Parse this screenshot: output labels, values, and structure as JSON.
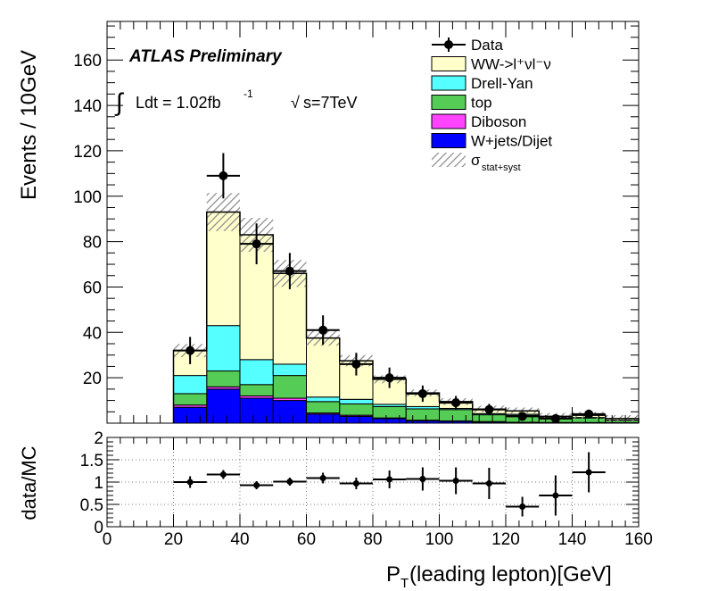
{
  "chart_data": [
    {
      "type": "bar",
      "stacked": true,
      "ylabel": "Events / 10GeV",
      "xlim": [
        0,
        160
      ],
      "ylim": [
        0,
        177
      ],
      "yticks": [
        20,
        40,
        60,
        80,
        100,
        120,
        140,
        160
      ],
      "bin_edges": [
        20,
        30,
        40,
        50,
        60,
        70,
        80,
        90,
        100,
        110,
        120,
        130,
        140,
        150,
        160
      ],
      "series": [
        {
          "name": "W+jets/Dijet",
          "color": "#0000ff",
          "values": [
            7,
            15,
            11,
            10,
            4,
            3,
            2,
            1,
            0.8,
            0.5,
            0.3,
            0.2,
            0.2,
            0.1
          ]
        },
        {
          "name": "Diboson",
          "color": "#ff44ff",
          "values": [
            1,
            1,
            1,
            1,
            0.5,
            0.5,
            0.3,
            0.3,
            0.2,
            0.2,
            0.1,
            0.1,
            0.1,
            0.1
          ]
        },
        {
          "name": "top",
          "color": "#55cc55",
          "values": [
            5,
            7,
            5,
            10,
            5,
            5,
            5,
            5,
            5,
            3,
            3,
            2,
            2,
            1
          ]
        },
        {
          "name": "Drell-Yan",
          "color": "#55ffff",
          "values": [
            8,
            20,
            11,
            5,
            2,
            2,
            1,
            1,
            0.5,
            0.5,
            0.5,
            0.2,
            0.2,
            0.1
          ]
        },
        {
          "name": "WW->l⁺νl⁻ν",
          "color": "#ffffcc",
          "values": [
            11,
            50,
            55,
            40,
            26,
            17,
            11,
            6,
            3,
            2,
            1.5,
            0.5,
            1,
            0.7
          ]
        }
      ],
      "data": {
        "name": "Data",
        "x": [
          25,
          35,
          45,
          55,
          65,
          75,
          85,
          95,
          105,
          115,
          125,
          135,
          145
        ],
        "y": [
          32,
          109,
          79,
          67,
          41,
          26,
          20,
          13,
          9,
          6,
          3,
          2,
          4
        ],
        "err": [
          6,
          10,
          9,
          8,
          6.5,
          5,
          4.5,
          3.6,
          3,
          2.5,
          1.7,
          1.4,
          2
        ]
      },
      "uncertainty_label": "σ",
      "uncertainty_sublabel": "stat+syst",
      "annotations": {
        "experiment": "ATLAS Preliminary",
        "lumi_integral": "∫",
        "lumi_text": "Ldt = 1.02fb",
        "lumi_exp": "-1",
        "energy_sqrt": "√",
        "energy_text": "s=7TeV"
      },
      "legend_position": "top-right"
    },
    {
      "type": "scatter",
      "xlabel_main": "P",
      "xlabel_sub": "T",
      "xlabel_rest": "(leading lepton)[GeV]",
      "ylabel": "data/MC",
      "xlim": [
        0,
        160
      ],
      "ylim": [
        0,
        2
      ],
      "xticks": [
        0,
        20,
        40,
        60,
        80,
        100,
        120,
        140,
        160
      ],
      "yticks": [
        0,
        0.5,
        1,
        1.5,
        2
      ],
      "ytick_labels": [
        "0",
        "0.5",
        "1",
        "1.5",
        "2"
      ],
      "grid": true,
      "x": [
        25,
        35,
        45,
        55,
        65,
        75,
        85,
        95,
        105,
        115,
        125,
        135,
        145
      ],
      "y": [
        1.0,
        1.17,
        0.93,
        1.01,
        1.09,
        0.97,
        1.06,
        1.07,
        1.03,
        0.97,
        0.45,
        0.7,
        1.22
      ],
      "err": [
        0.13,
        0.1,
        0.09,
        0.09,
        0.12,
        0.13,
        0.2,
        0.26,
        0.3,
        0.35,
        0.22,
        0.45,
        0.45
      ]
    }
  ]
}
